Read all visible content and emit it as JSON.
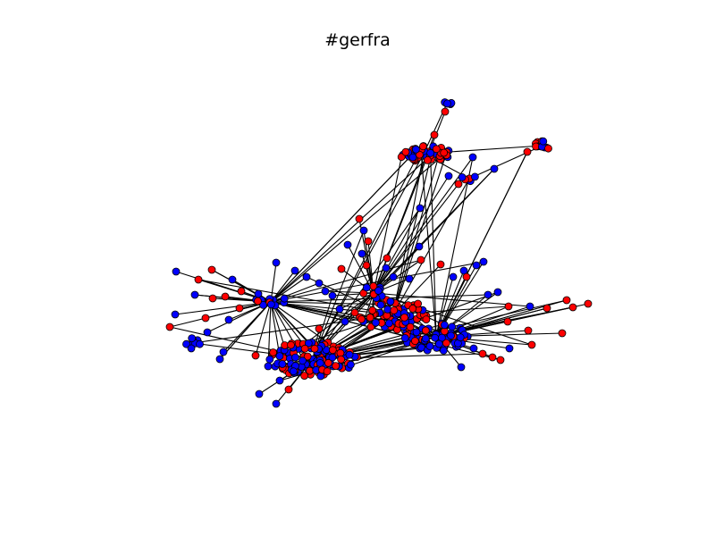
{
  "title": "#gerfra",
  "colors": {
    "node_a": "#ff0000",
    "node_b": "#0000ff",
    "node_edge": "#000000",
    "edge": "#000000",
    "background": "#ffffff"
  }
}
